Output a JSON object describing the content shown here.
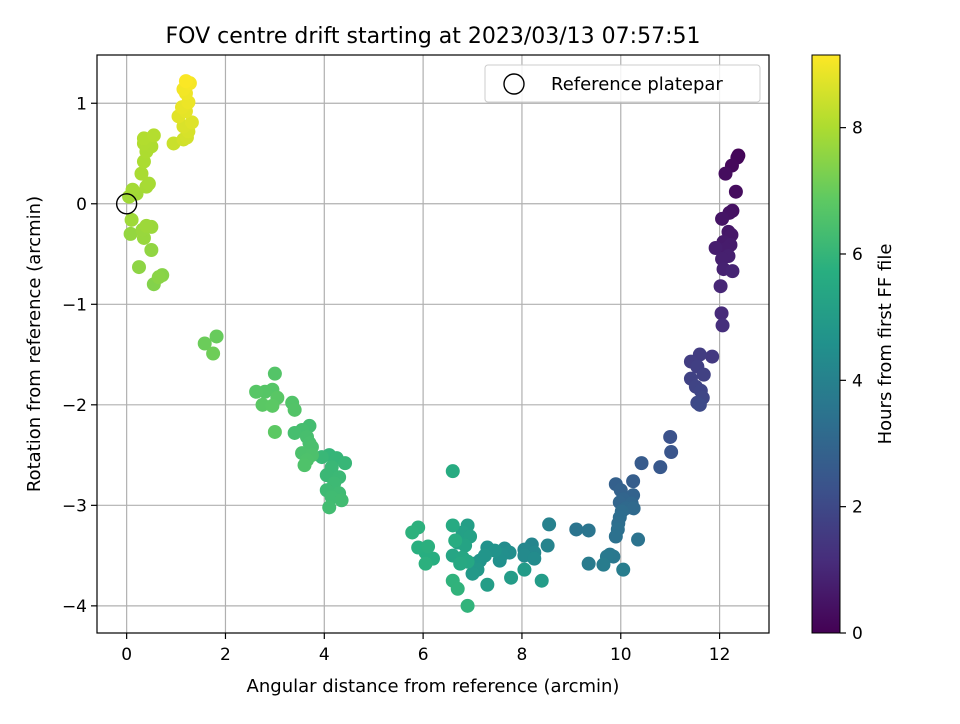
{
  "chart_data": {
    "type": "scatter",
    "title": "FOV centre drift starting at 2023/03/13 07:57:51",
    "xlabel": "Angular distance from reference (arcmin)",
    "ylabel": "Rotation from reference (arcmin)",
    "xlim": [
      -0.6,
      13.0
    ],
    "ylim": [
      -4.27,
      1.48
    ],
    "x_ticks": [
      0,
      2,
      4,
      6,
      8,
      10,
      12
    ],
    "y_ticks": [
      -4,
      -3,
      -2,
      -1,
      0,
      1
    ],
    "x_tick_labels": [
      "0",
      "2",
      "4",
      "6",
      "8",
      "10",
      "12"
    ],
    "y_tick_labels": [
      "−4",
      "−3",
      "−2",
      "−1",
      "0",
      "1"
    ],
    "grid": true,
    "legend": {
      "placement": "top-right",
      "entries": [
        "Reference platepar"
      ]
    },
    "reference_point": {
      "x": 0,
      "y": 0,
      "marker": "open-circle"
    },
    "colorbar": {
      "label": "Hours from first FF file",
      "colormap": "viridis",
      "range": [
        0,
        9.15
      ],
      "ticks": [
        0,
        2,
        4,
        6,
        8
      ],
      "tick_labels": [
        "0",
        "2",
        "4",
        "6",
        "8"
      ]
    },
    "points": [
      {
        "x": 12.38,
        "y": 0.48,
        "c": 0.1
      },
      {
        "x": 12.36,
        "y": 0.46,
        "c": 0.15
      },
      {
        "x": 12.25,
        "y": 0.38,
        "c": 0.2
      },
      {
        "x": 12.12,
        "y": 0.3,
        "c": 0.3
      },
      {
        "x": 12.33,
        "y": 0.12,
        "c": 0.3
      },
      {
        "x": 12.26,
        "y": -0.07,
        "c": 0.4
      },
      {
        "x": 12.2,
        "y": -0.09,
        "c": 0.45
      },
      {
        "x": 12.05,
        "y": -0.15,
        "c": 0.5
      },
      {
        "x": 12.18,
        "y": -0.28,
        "c": 0.55
      },
      {
        "x": 12.24,
        "y": -0.31,
        "c": 0.6
      },
      {
        "x": 12.08,
        "y": -0.38,
        "c": 0.65
      },
      {
        "x": 12.22,
        "y": -0.41,
        "c": 0.7
      },
      {
        "x": 12.12,
        "y": -0.45,
        "c": 0.7
      },
      {
        "x": 11.92,
        "y": -0.44,
        "c": 0.75
      },
      {
        "x": 12.18,
        "y": -0.52,
        "c": 0.8
      },
      {
        "x": 12.05,
        "y": -0.55,
        "c": 0.8
      },
      {
        "x": 12.08,
        "y": -0.65,
        "c": 0.85
      },
      {
        "x": 12.26,
        "y": -0.67,
        "c": 0.9
      },
      {
        "x": 12.02,
        "y": -0.82,
        "c": 1.0
      },
      {
        "x": 12.04,
        "y": -1.09,
        "c": 1.1
      },
      {
        "x": 12.06,
        "y": -1.21,
        "c": 1.2
      },
      {
        "x": 11.85,
        "y": -1.52,
        "c": 1.5
      },
      {
        "x": 11.6,
        "y": -1.5,
        "c": 1.6
      },
      {
        "x": 11.42,
        "y": -1.57,
        "c": 1.65
      },
      {
        "x": 11.55,
        "y": -1.62,
        "c": 1.7
      },
      {
        "x": 11.68,
        "y": -1.7,
        "c": 1.75
      },
      {
        "x": 11.42,
        "y": -1.74,
        "c": 1.8
      },
      {
        "x": 11.52,
        "y": -1.82,
        "c": 1.85
      },
      {
        "x": 11.62,
        "y": -1.86,
        "c": 1.9
      },
      {
        "x": 11.66,
        "y": -1.93,
        "c": 1.95
      },
      {
        "x": 11.55,
        "y": -1.98,
        "c": 2.0
      },
      {
        "x": 11.6,
        "y": -2.0,
        "c": 2.05
      },
      {
        "x": 11.0,
        "y": -2.32,
        "c": 2.3
      },
      {
        "x": 11.02,
        "y": -2.47,
        "c": 2.4
      },
      {
        "x": 10.8,
        "y": -2.62,
        "c": 2.5
      },
      {
        "x": 10.42,
        "y": -2.58,
        "c": 2.6
      },
      {
        "x": 10.25,
        "y": -2.76,
        "c": 2.7
      },
      {
        "x": 9.9,
        "y": -2.79,
        "c": 2.8
      },
      {
        "x": 10.0,
        "y": -2.85,
        "c": 2.85
      },
      {
        "x": 10.25,
        "y": -2.9,
        "c": 2.9
      },
      {
        "x": 10.05,
        "y": -2.94,
        "c": 2.95
      },
      {
        "x": 9.98,
        "y": -2.97,
        "c": 3.0
      },
      {
        "x": 10.22,
        "y": -2.98,
        "c": 3.05
      },
      {
        "x": 10.1,
        "y": -3.03,
        "c": 3.1
      },
      {
        "x": 10.26,
        "y": -3.03,
        "c": 3.15
      },
      {
        "x": 10.02,
        "y": -3.06,
        "c": 3.2
      },
      {
        "x": 9.98,
        "y": -3.12,
        "c": 3.25
      },
      {
        "x": 9.95,
        "y": -3.18,
        "c": 3.3
      },
      {
        "x": 9.94,
        "y": -3.24,
        "c": 3.35
      },
      {
        "x": 9.9,
        "y": -3.31,
        "c": 3.4
      },
      {
        "x": 10.35,
        "y": -3.34,
        "c": 3.45
      },
      {
        "x": 9.1,
        "y": -3.24,
        "c": 3.5
      },
      {
        "x": 9.35,
        "y": -3.25,
        "c": 3.55
      },
      {
        "x": 9.78,
        "y": -3.49,
        "c": 3.6
      },
      {
        "x": 9.85,
        "y": -3.51,
        "c": 3.65
      },
      {
        "x": 9.72,
        "y": -3.51,
        "c": 3.7
      },
      {
        "x": 9.35,
        "y": -3.58,
        "c": 3.75
      },
      {
        "x": 9.65,
        "y": -3.59,
        "c": 3.8
      },
      {
        "x": 10.05,
        "y": -3.64,
        "c": 3.85
      },
      {
        "x": 8.55,
        "y": -3.19,
        "c": 4.0
      },
      {
        "x": 8.52,
        "y": -3.4,
        "c": 4.1
      },
      {
        "x": 8.2,
        "y": -3.39,
        "c": 4.15
      },
      {
        "x": 8.05,
        "y": -3.44,
        "c": 4.2
      },
      {
        "x": 8.25,
        "y": -3.47,
        "c": 4.25
      },
      {
        "x": 8.05,
        "y": -3.5,
        "c": 4.3
      },
      {
        "x": 8.25,
        "y": -3.53,
        "c": 4.35
      },
      {
        "x": 7.65,
        "y": -3.43,
        "c": 4.4
      },
      {
        "x": 7.75,
        "y": -3.47,
        "c": 4.45
      },
      {
        "x": 7.6,
        "y": -3.49,
        "c": 4.5
      },
      {
        "x": 7.55,
        "y": -3.55,
        "c": 4.55
      },
      {
        "x": 7.3,
        "y": -3.42,
        "c": 4.6
      },
      {
        "x": 7.45,
        "y": -3.45,
        "c": 4.65
      },
      {
        "x": 7.15,
        "y": -3.55,
        "c": 4.7
      },
      {
        "x": 7.25,
        "y": -3.5,
        "c": 4.75
      },
      {
        "x": 7.05,
        "y": -3.58,
        "c": 4.8
      },
      {
        "x": 7.1,
        "y": -3.64,
        "c": 4.85
      },
      {
        "x": 7.0,
        "y": -3.68,
        "c": 4.9
      },
      {
        "x": 8.05,
        "y": -3.64,
        "c": 4.95
      },
      {
        "x": 7.78,
        "y": -3.72,
        "c": 5.0
      },
      {
        "x": 8.4,
        "y": -3.75,
        "c": 5.0
      },
      {
        "x": 7.3,
        "y": -3.79,
        "c": 5.05
      },
      {
        "x": 6.9,
        "y": -3.2,
        "c": 5.1
      },
      {
        "x": 6.8,
        "y": -3.27,
        "c": 5.15
      },
      {
        "x": 6.95,
        "y": -3.31,
        "c": 5.2
      },
      {
        "x": 6.7,
        "y": -3.37,
        "c": 5.25
      },
      {
        "x": 6.85,
        "y": -3.4,
        "c": 5.3
      },
      {
        "x": 6.6,
        "y": -3.5,
        "c": 5.35
      },
      {
        "x": 6.8,
        "y": -3.52,
        "c": 5.4
      },
      {
        "x": 6.9,
        "y": -3.56,
        "c": 5.45
      },
      {
        "x": 6.75,
        "y": -3.58,
        "c": 5.5
      },
      {
        "x": 6.6,
        "y": -3.2,
        "c": 5.55
      },
      {
        "x": 6.6,
        "y": -2.66,
        "c": 5.6
      },
      {
        "x": 6.65,
        "y": -3.35,
        "c": 5.65
      },
      {
        "x": 6.2,
        "y": -3.53,
        "c": 5.7
      },
      {
        "x": 6.05,
        "y": -3.47,
        "c": 5.72
      },
      {
        "x": 5.9,
        "y": -3.42,
        "c": 5.75
      },
      {
        "x": 6.1,
        "y": -3.41,
        "c": 5.78
      },
      {
        "x": 6.05,
        "y": -3.58,
        "c": 5.8
      },
      {
        "x": 5.9,
        "y": -3.22,
        "c": 5.82
      },
      {
        "x": 5.78,
        "y": -3.27,
        "c": 5.85
      },
      {
        "x": 6.6,
        "y": -3.75,
        "c": 5.88
      },
      {
        "x": 6.7,
        "y": -3.83,
        "c": 5.9
      },
      {
        "x": 6.9,
        "y": -4.0,
        "c": 5.92
      },
      {
        "x": 4.1,
        "y": -2.5,
        "c": 6.0
      },
      {
        "x": 4.25,
        "y": -2.53,
        "c": 6.02
      },
      {
        "x": 4.42,
        "y": -2.58,
        "c": 6.05
      },
      {
        "x": 3.95,
        "y": -2.52,
        "c": 6.08
      },
      {
        "x": 4.15,
        "y": -2.62,
        "c": 6.1
      },
      {
        "x": 4.05,
        "y": -2.7,
        "c": 6.12
      },
      {
        "x": 4.3,
        "y": -2.72,
        "c": 6.15
      },
      {
        "x": 4.2,
        "y": -2.78,
        "c": 6.18
      },
      {
        "x": 4.05,
        "y": -2.85,
        "c": 6.2
      },
      {
        "x": 4.3,
        "y": -2.88,
        "c": 6.22
      },
      {
        "x": 4.15,
        "y": -2.92,
        "c": 6.25
      },
      {
        "x": 4.35,
        "y": -2.95,
        "c": 6.28
      },
      {
        "x": 4.1,
        "y": -3.02,
        "c": 6.3
      },
      {
        "x": 3.7,
        "y": -2.21,
        "c": 6.32
      },
      {
        "x": 3.55,
        "y": -2.25,
        "c": 6.35
      },
      {
        "x": 3.4,
        "y": -2.28,
        "c": 6.38
      },
      {
        "x": 3.65,
        "y": -2.32,
        "c": 6.4
      },
      {
        "x": 3.7,
        "y": -2.38,
        "c": 6.42
      },
      {
        "x": 3.75,
        "y": -2.42,
        "c": 6.45
      },
      {
        "x": 3.55,
        "y": -2.48,
        "c": 6.48
      },
      {
        "x": 3.75,
        "y": -2.5,
        "c": 6.5
      },
      {
        "x": 3.65,
        "y": -2.55,
        "c": 6.52
      },
      {
        "x": 3.6,
        "y": -2.6,
        "c": 6.55
      },
      {
        "x": 3.35,
        "y": -1.98,
        "c": 6.6
      },
      {
        "x": 3.4,
        "y": -2.05,
        "c": 6.62
      },
      {
        "x": 3.0,
        "y": -1.69,
        "c": 6.65
      },
      {
        "x": 2.95,
        "y": -1.85,
        "c": 6.68
      },
      {
        "x": 2.8,
        "y": -1.87,
        "c": 6.7
      },
      {
        "x": 2.62,
        "y": -1.87,
        "c": 6.72
      },
      {
        "x": 3.05,
        "y": -1.93,
        "c": 6.75
      },
      {
        "x": 2.75,
        "y": -2.0,
        "c": 6.78
      },
      {
        "x": 2.95,
        "y": -2.01,
        "c": 6.8
      },
      {
        "x": 3.0,
        "y": -2.27,
        "c": 6.82
      },
      {
        "x": 1.82,
        "y": -1.32,
        "c": 7.0
      },
      {
        "x": 1.58,
        "y": -1.39,
        "c": 7.05
      },
      {
        "x": 1.75,
        "y": -1.49,
        "c": 7.1
      },
      {
        "x": 0.55,
        "y": -0.8,
        "c": 7.4
      },
      {
        "x": 0.72,
        "y": -0.71,
        "c": 7.45
      },
      {
        "x": 0.65,
        "y": -0.73,
        "c": 7.5
      },
      {
        "x": 0.25,
        "y": -0.63,
        "c": 7.55
      },
      {
        "x": 0.5,
        "y": -0.46,
        "c": 7.6
      },
      {
        "x": 0.08,
        "y": -0.3,
        "c": 7.65
      },
      {
        "x": 0.35,
        "y": -0.34,
        "c": 7.7
      },
      {
        "x": 0.32,
        "y": -0.26,
        "c": 7.72
      },
      {
        "x": 0.5,
        "y": -0.23,
        "c": 7.75
      },
      {
        "x": 0.4,
        "y": -0.22,
        "c": 7.78
      },
      {
        "x": 0.1,
        "y": -0.16,
        "c": 7.8
      },
      {
        "x": 0.05,
        "y": 0.07,
        "c": 7.82
      },
      {
        "x": 0.2,
        "y": 0.1,
        "c": 7.85
      },
      {
        "x": 0.12,
        "y": 0.14,
        "c": 7.88
      },
      {
        "x": 0.4,
        "y": 0.17,
        "c": 7.9
      },
      {
        "x": 0.45,
        "y": 0.2,
        "c": 7.92
      },
      {
        "x": 0.3,
        "y": 0.3,
        "c": 7.95
      },
      {
        "x": 0.35,
        "y": 0.42,
        "c": 7.98
      },
      {
        "x": 0.4,
        "y": 0.52,
        "c": 8.0
      },
      {
        "x": 0.5,
        "y": 0.57,
        "c": 8.02
      },
      {
        "x": 0.35,
        "y": 0.6,
        "c": 8.05
      },
      {
        "x": 0.35,
        "y": 0.65,
        "c": 8.08
      },
      {
        "x": 0.55,
        "y": 0.68,
        "c": 8.1
      },
      {
        "x": 0.95,
        "y": 0.6,
        "c": 8.4
      },
      {
        "x": 1.15,
        "y": 0.64,
        "c": 8.5
      },
      {
        "x": 1.22,
        "y": 0.66,
        "c": 8.55
      },
      {
        "x": 1.25,
        "y": 0.72,
        "c": 8.6
      },
      {
        "x": 1.15,
        "y": 0.77,
        "c": 8.65
      },
      {
        "x": 1.32,
        "y": 0.81,
        "c": 8.7
      },
      {
        "x": 1.05,
        "y": 0.87,
        "c": 8.75
      },
      {
        "x": 1.2,
        "y": 0.92,
        "c": 8.8
      },
      {
        "x": 1.12,
        "y": 0.96,
        "c": 8.85
      },
      {
        "x": 1.25,
        "y": 1.01,
        "c": 8.9
      },
      {
        "x": 1.2,
        "y": 1.1,
        "c": 8.95
      },
      {
        "x": 1.15,
        "y": 1.14,
        "c": 9.0
      },
      {
        "x": 1.28,
        "y": 1.2,
        "c": 9.05
      },
      {
        "x": 1.2,
        "y": 1.22,
        "c": 9.1
      }
    ]
  }
}
